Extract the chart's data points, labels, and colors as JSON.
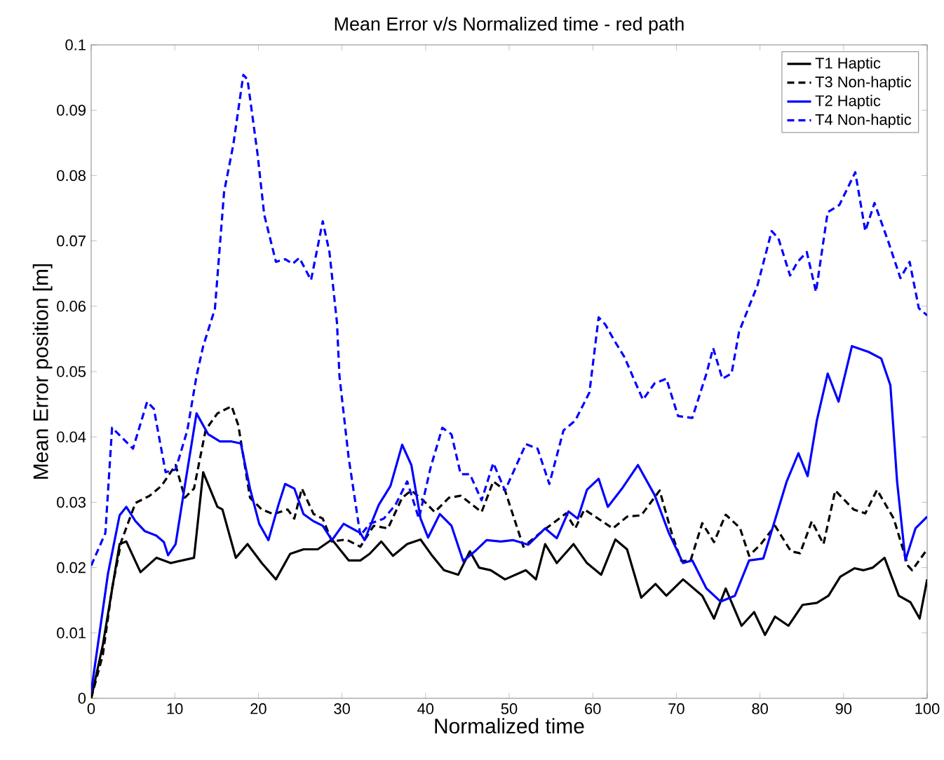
{
  "chart_data": {
    "type": "line",
    "title": "Mean Error v/s Normalized time - red path",
    "xlabel": "Normalized time",
    "ylabel": "Mean Error position [m]",
    "xlim": [
      0,
      100
    ],
    "ylim": [
      0,
      0.1
    ],
    "xticks": [
      0,
      10,
      20,
      30,
      40,
      50,
      60,
      70,
      80,
      90,
      100
    ],
    "yticks": [
      0,
      0.01,
      0.02,
      0.03,
      0.04,
      0.05,
      0.06,
      0.07,
      0.08,
      0.09,
      0.1
    ],
    "legend": "top right",
    "grid": false,
    "marker": "none",
    "series": [
      {
        "name": "T1 Haptic",
        "color": "#000000",
        "line_style": "solid",
        "x": [
          0,
          1.4,
          3.4,
          4.2,
          5.9,
          7.8,
          9.5,
          10.9,
          12.3,
          13.4,
          15.1,
          15.7,
          17.3,
          18.7,
          20.4,
          22.1,
          23.8,
          25.4,
          27.1,
          28.8,
          30.8,
          32.2,
          33.3,
          34.7,
          36.1,
          37.8,
          39.4,
          40.8,
          42.2,
          43.9,
          45.3,
          46.4,
          47.8,
          49.5,
          52,
          53.2,
          54.3,
          55.7,
          57.7,
          59.3,
          61,
          62.7,
          64.1,
          65.8,
          67.5,
          68.8,
          70.8,
          73.1,
          74.5,
          75.9,
          77.8,
          79.3,
          80.6,
          81.8,
          83.4,
          85.1,
          86.8,
          88.2,
          89.6,
          91.3,
          92.4,
          93.5,
          94.9,
          96.6,
          98,
          99.1,
          100
        ],
        "values": [
          0,
          0.0082,
          0.0236,
          0.024,
          0.0193,
          0.0215,
          0.0207,
          0.0211,
          0.0215,
          0.0346,
          0.0293,
          0.0289,
          0.0215,
          0.0236,
          0.0207,
          0.0182,
          0.0221,
          0.0228,
          0.0228,
          0.0243,
          0.0211,
          0.0211,
          0.0221,
          0.024,
          0.0218,
          0.0236,
          0.0243,
          0.0218,
          0.0196,
          0.0189,
          0.0225,
          0.02,
          0.0196,
          0.0182,
          0.0196,
          0.0182,
          0.0236,
          0.0207,
          0.0236,
          0.0207,
          0.0189,
          0.0243,
          0.0228,
          0.0154,
          0.0175,
          0.0157,
          0.0182,
          0.0157,
          0.0122,
          0.0168,
          0.0111,
          0.0132,
          0.0097,
          0.0125,
          0.0111,
          0.0143,
          0.0146,
          0.0157,
          0.0186,
          0.0199,
          0.0196,
          0.02,
          0.0215,
          0.0157,
          0.0147,
          0.0122,
          0.0182
        ]
      },
      {
        "name": "T3 Non-haptic",
        "color": "#000000",
        "line_style": "dashed",
        "x": [
          0,
          1.4,
          2.5,
          3.6,
          5.3,
          7,
          8.4,
          10.1,
          11.2,
          12.3,
          13.7,
          15.1,
          16.8,
          17.6,
          19,
          20.4,
          21.8,
          23.5,
          24.3,
          25.2,
          26.6,
          27.7,
          28.8,
          30.5,
          32.2,
          33.8,
          35.5,
          37.2,
          38.3,
          39.7,
          41.1,
          42.8,
          44.2,
          45.6,
          46.7,
          48.1,
          49.5,
          51.7,
          53.7,
          56.8,
          57.9,
          59,
          62.4,
          64.1,
          65.8,
          68,
          69.5,
          70.6,
          71.7,
          73.1,
          74.5,
          75.9,
          77.6,
          78.7,
          80.1,
          81.8,
          83.7,
          84.8,
          86.2,
          87.6,
          89,
          91.2,
          92.6,
          94,
          96,
          97.7,
          98.2,
          100
        ],
        "values": [
          0,
          0.0067,
          0.0168,
          0.024,
          0.0299,
          0.031,
          0.0325,
          0.0357,
          0.0307,
          0.0321,
          0.0411,
          0.0436,
          0.0447,
          0.0418,
          0.0307,
          0.0289,
          0.0282,
          0.0289,
          0.0275,
          0.0321,
          0.0282,
          0.0275,
          0.024,
          0.0243,
          0.0232,
          0.0264,
          0.026,
          0.0307,
          0.0318,
          0.0303,
          0.0285,
          0.0307,
          0.031,
          0.0296,
          0.0285,
          0.0332,
          0.0318,
          0.0232,
          0.0253,
          0.0283,
          0.026,
          0.0289,
          0.026,
          0.0278,
          0.028,
          0.0318,
          0.025,
          0.021,
          0.0211,
          0.0268,
          0.0239,
          0.0281,
          0.0261,
          0.0218,
          0.0236,
          0.0264,
          0.0225,
          0.0222,
          0.0271,
          0.0236,
          0.0318,
          0.0289,
          0.0283,
          0.0319,
          0.0275,
          0.0203,
          0.0196,
          0.0228
        ]
      },
      {
        "name": "T2 Haptic",
        "color": "#0000ff",
        "line_style": "solid",
        "x": [
          0,
          2,
          3.4,
          4.2,
          5.3,
          6.4,
          7.8,
          8.7,
          9.2,
          10.1,
          11.2,
          12.6,
          14,
          15.4,
          16.8,
          17.9,
          19,
          20.1,
          21.2,
          22.4,
          23.2,
          24.3,
          25.4,
          26.6,
          27.7,
          28.8,
          30.2,
          32.2,
          32.7,
          34.4,
          35.8,
          37.2,
          38.3,
          39.4,
          40.3,
          41.7,
          43.1,
          44.5,
          45.9,
          47.3,
          49,
          50.5,
          52.3,
          54.3,
          55.7,
          57.1,
          58.2,
          59.3,
          60.7,
          61.8,
          63.5,
          65.4,
          67.4,
          69.1,
          70.8,
          71.9,
          73.6,
          75.3,
          77,
          78.7,
          80.4,
          83.2,
          84.6,
          85.7,
          86.8,
          88.1,
          89.4,
          91,
          93,
          94.5,
          95.6,
          96.4,
          97.4,
          98.6,
          100
        ],
        "values": [
          0.001,
          0.019,
          0.028,
          0.0293,
          0.0271,
          0.0256,
          0.0249,
          0.0239,
          0.0219,
          0.0236,
          0.0325,
          0.0436,
          0.0404,
          0.0393,
          0.0393,
          0.039,
          0.0321,
          0.0267,
          0.0242,
          0.0296,
          0.0328,
          0.0321,
          0.0282,
          0.0271,
          0.0264,
          0.0242,
          0.0267,
          0.0253,
          0.0242,
          0.0296,
          0.0325,
          0.0388,
          0.0357,
          0.0275,
          0.0246,
          0.0282,
          0.0264,
          0.021,
          0.0225,
          0.0242,
          0.024,
          0.0242,
          0.0235,
          0.026,
          0.0245,
          0.0286,
          0.0275,
          0.0319,
          0.0336,
          0.0293,
          0.0321,
          0.0357,
          0.0311,
          0.0253,
          0.0207,
          0.0211,
          0.0168,
          0.0148,
          0.0157,
          0.0211,
          0.0214,
          0.0332,
          0.0375,
          0.034,
          0.0425,
          0.0497,
          0.0454,
          0.0539,
          0.053,
          0.052,
          0.0479,
          0.0332,
          0.0211,
          0.026,
          0.0278
        ]
      },
      {
        "name": "T4 Non-haptic",
        "color": "#0000ff",
        "line_style": "dashed",
        "x": [
          0,
          1.7,
          2.5,
          3.6,
          5,
          6.7,
          7.5,
          8.9,
          10.1,
          11.5,
          12.6,
          13.4,
          14.8,
          15.9,
          17,
          18.2,
          18.7,
          19.9,
          20.7,
          22.1,
          23.2,
          24.1,
          24.9,
          26.3,
          27.7,
          28.5,
          29.4,
          29.7,
          30.8,
          32.2,
          33.3,
          35,
          36.4,
          37.8,
          39.2,
          40.6,
          42,
          43.1,
          44.2,
          45.3,
          46.7,
          48.1,
          49.5,
          52,
          53.4,
          54.8,
          56.5,
          57.9,
          59.6,
          60.7,
          61.5,
          62.6,
          63.8,
          64.9,
          66,
          67.4,
          68.8,
          70.2,
          71.9,
          73.6,
          74.4,
          75.5,
          76.6,
          77.5,
          79.7,
          81.4,
          82.2,
          83.6,
          84.5,
          85.6,
          86.7,
          88.1,
          89.5,
          91.4,
          92.6,
          93.7,
          95.4,
          96.8,
          97.9,
          99,
          100
        ],
        "values": [
          0.0203,
          0.0253,
          0.0414,
          0.04,
          0.0382,
          0.0454,
          0.0443,
          0.0346,
          0.035,
          0.041,
          0.0493,
          0.0539,
          0.0596,
          0.0775,
          0.0847,
          0.0954,
          0.0947,
          0.0833,
          0.074,
          0.0668,
          0.0672,
          0.0665,
          0.0674,
          0.064,
          0.073,
          0.0683,
          0.0575,
          0.0493,
          0.0368,
          0.0249,
          0.0267,
          0.0275,
          0.0296,
          0.0332,
          0.0275,
          0.0353,
          0.0414,
          0.0404,
          0.0343,
          0.0343,
          0.0303,
          0.036,
          0.0318,
          0.0389,
          0.0382,
          0.0328,
          0.041,
          0.0425,
          0.0468,
          0.0583,
          0.0572,
          0.0547,
          0.0522,
          0.0489,
          0.0457,
          0.0482,
          0.0489,
          0.0432,
          0.0429,
          0.0497,
          0.0536,
          0.0489,
          0.0497,
          0.0561,
          0.0632,
          0.0715,
          0.0704,
          0.0647,
          0.0668,
          0.0683,
          0.0622,
          0.0744,
          0.0755,
          0.0805,
          0.0715,
          0.0758,
          0.0697,
          0.0643,
          0.0668,
          0.0597,
          0.0586
        ]
      }
    ]
  }
}
